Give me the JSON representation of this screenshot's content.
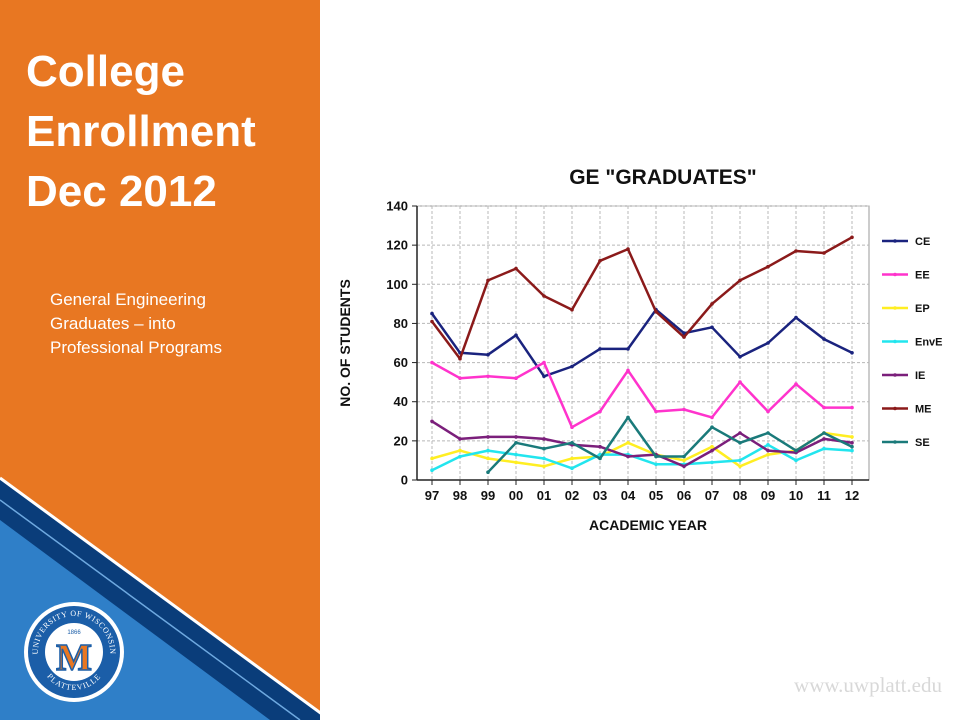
{
  "slide": {
    "title_lines": [
      "College",
      "Enrollment",
      "Dec 2012"
    ],
    "subtitle_lines": [
      "General Engineering",
      "Graduates – into",
      "Professional Programs"
    ],
    "website": "www.uwplatt.edu",
    "seal": {
      "top_text": "UNIVERSITY OF WISCONSIN",
      "bottom_text": "PLATTEVILLE",
      "year": "1866",
      "letter": "M"
    },
    "colors": {
      "sidebar": "#E87722",
      "stripe_dark": "#0A3D7A",
      "stripe_light": "#2F7FC8"
    }
  },
  "chart_data": {
    "type": "line",
    "title": "GE \"GRADUATES\"",
    "xlabel": "ACADEMIC YEAR",
    "ylabel": "NO. OF STUDENTS",
    "ylim": [
      0,
      140
    ],
    "yticks": [
      0,
      20,
      40,
      60,
      80,
      100,
      120,
      140
    ],
    "grid": true,
    "legend": "right",
    "categories": [
      "97",
      "98",
      "99",
      "00",
      "01",
      "02",
      "03",
      "04",
      "05",
      "06",
      "07",
      "08",
      "09",
      "10",
      "11",
      "12"
    ],
    "series": [
      {
        "name": "CE",
        "color": "#1A237E",
        "values": [
          85,
          65,
          64,
          74,
          53,
          58,
          67,
          67,
          87,
          75,
          78,
          63,
          70,
          83,
          72,
          65
        ]
      },
      {
        "name": "EE",
        "color": "#FF33CC",
        "values": [
          60,
          52,
          53,
          52,
          60,
          27,
          35,
          56,
          35,
          36,
          32,
          50,
          35,
          49,
          37,
          37
        ]
      },
      {
        "name": "EP",
        "color": "#FFEE22",
        "values": [
          11,
          15,
          11,
          9,
          7,
          11,
          12,
          19,
          13,
          10,
          17,
          7,
          13,
          15,
          24,
          22
        ]
      },
      {
        "name": "EnvE",
        "color": "#22E5EE",
        "values": [
          5,
          12,
          15,
          13,
          11,
          6,
          13,
          13,
          8,
          8,
          9,
          10,
          18,
          10,
          16,
          15
        ]
      },
      {
        "name": "IE",
        "color": "#7B1F7B",
        "values": [
          30,
          21,
          22,
          22,
          21,
          18,
          17,
          12,
          13,
          7,
          15,
          24,
          15,
          14,
          21,
          19
        ]
      },
      {
        "name": "ME",
        "color": "#8B1A1A",
        "values": [
          81,
          62,
          102,
          108,
          94,
          87,
          112,
          118,
          86,
          73,
          90,
          102,
          109,
          117,
          116,
          124
        ]
      },
      {
        "name": "SE",
        "color": "#1A7A7A",
        "values": [
          null,
          null,
          4,
          19,
          16,
          19,
          11,
          32,
          12,
          12,
          27,
          19,
          24,
          15,
          24,
          17
        ]
      }
    ]
  }
}
